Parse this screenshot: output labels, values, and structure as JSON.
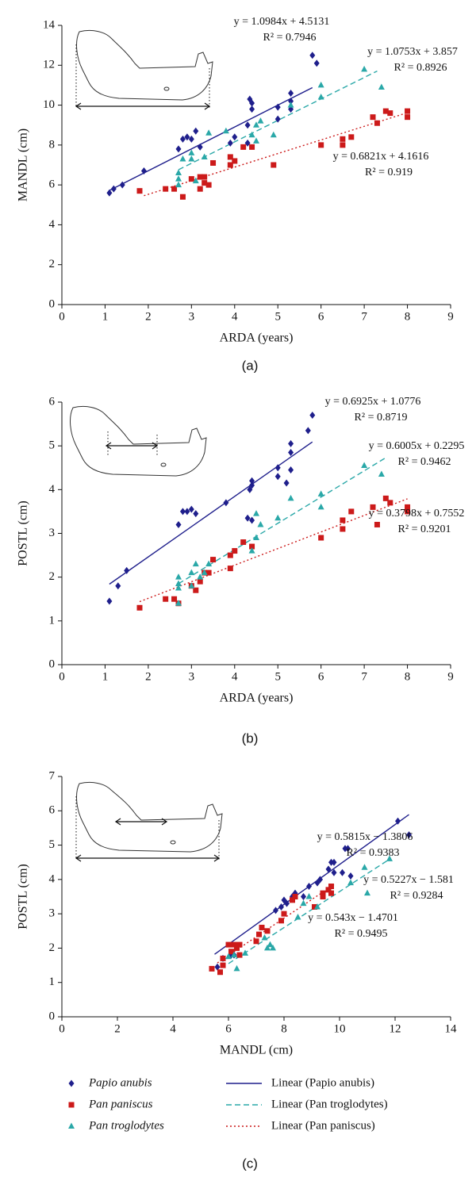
{
  "chart_data": [
    {
      "type": "scatter",
      "label": "(a)",
      "xlabel": "ARDA (years)",
      "ylabel": "MANDL (cm)",
      "xlim": [
        0,
        9
      ],
      "ylim": [
        0,
        14
      ],
      "xticks": [
        0,
        1,
        2,
        3,
        4,
        5,
        6,
        7,
        8,
        9
      ],
      "yticks": [
        0,
        2,
        4,
        6,
        8,
        10,
        12,
        14
      ],
      "series": [
        {
          "color": "#1f1f8c",
          "marker": "diamond",
          "x": [
            1.1,
            1.2,
            1.4,
            1.9,
            2.7,
            2.8,
            2.9,
            3.0,
            3.1,
            3.2,
            3.9,
            4.0,
            4.3,
            4.3,
            4.35,
            4.4,
            4.4,
            5.0,
            5.0,
            5.3,
            5.3,
            5.3,
            5.8,
            5.9
          ],
          "values": [
            5.6,
            5.8,
            6.0,
            6.7,
            7.8,
            8.3,
            8.4,
            8.3,
            8.7,
            7.9,
            8.1,
            8.4,
            8.1,
            9.0,
            10.3,
            10.1,
            9.8,
            9.9,
            9.3,
            9.8,
            10.2,
            10.6,
            12.5,
            12.1
          ]
        },
        {
          "color": "#cc1a1a",
          "marker": "square",
          "x": [
            1.8,
            2.4,
            2.6,
            2.8,
            3.0,
            3.2,
            3.2,
            3.3,
            3.3,
            3.4,
            3.5,
            3.9,
            3.9,
            4.0,
            4.2,
            4.4,
            4.9,
            6.0,
            6.5,
            6.5,
            6.7,
            7.2,
            7.3,
            7.5,
            7.6,
            8.0,
            8.0
          ],
          "values": [
            5.7,
            5.8,
            5.8,
            5.4,
            6.3,
            6.4,
            5.8,
            6.4,
            6.1,
            6.0,
            7.1,
            7.0,
            7.4,
            7.2,
            7.9,
            7.9,
            7.0,
            8.0,
            8.0,
            8.3,
            8.4,
            9.4,
            9.1,
            9.7,
            9.6,
            9.4,
            9.7
          ]
        },
        {
          "color": "#2aa8a8",
          "marker": "triangle",
          "x": [
            2.7,
            2.7,
            2.7,
            2.8,
            3.0,
            3.0,
            3.1,
            3.3,
            3.4,
            3.8,
            4.4,
            4.5,
            4.5,
            4.6,
            4.9,
            5.3,
            6.0,
            6.0,
            7.0,
            7.4
          ],
          "values": [
            6.0,
            6.3,
            6.6,
            7.3,
            7.6,
            7.3,
            6.2,
            7.4,
            8.6,
            8.7,
            8.5,
            8.2,
            9.0,
            9.2,
            8.5,
            10.0,
            10.4,
            11.0,
            11.8,
            10.9
          ]
        }
      ],
      "trendlines": [
        {
          "color": "#1f1f8c",
          "dash": "solid",
          "x": [
            1.1,
            5.8
          ],
          "values": [
            5.72,
            10.88
          ]
        },
        {
          "color": "#2aa8a8",
          "dash": "dashed",
          "x": [
            2.7,
            7.3
          ],
          "values": [
            6.76,
            11.71
          ]
        },
        {
          "color": "#cc1a1a",
          "dash": "dotted",
          "x": [
            1.9,
            8.0
          ],
          "values": [
            5.46,
            9.62
          ]
        }
      ],
      "annotations": [
        {
          "equation": "y = 1.0984x + 4.5131",
          "r2": "R² = 0.7946"
        },
        {
          "equation": "y = 1.0753x + 3.857",
          "r2": "R² = 0.8926"
        },
        {
          "equation": "y = 0.6821x + 4.1616",
          "r2": "R² = 0.919"
        }
      ]
    },
    {
      "type": "scatter",
      "label": "(b)",
      "xlabel": "ARDA (years)",
      "ylabel": "POSTL (cm)",
      "xlim": [
        0,
        9
      ],
      "ylim": [
        0,
        6
      ],
      "xticks": [
        0,
        1,
        2,
        3,
        4,
        5,
        6,
        7,
        8,
        9
      ],
      "yticks": [
        0,
        1,
        2,
        3,
        4,
        5,
        6
      ],
      "series": [
        {
          "color": "#1f1f8c",
          "marker": "diamond",
          "x": [
            1.1,
            1.3,
            1.5,
            2.7,
            2.8,
            2.9,
            3.0,
            3.1,
            3.8,
            4.3,
            4.35,
            4.4,
            4.4,
            4.4,
            5.0,
            5.0,
            5.2,
            5.3,
            5.3,
            5.3,
            5.7,
            5.8
          ],
          "values": [
            1.45,
            1.8,
            2.15,
            3.2,
            3.5,
            3.5,
            3.55,
            3.45,
            3.7,
            3.35,
            4.0,
            4.1,
            4.2,
            3.3,
            4.5,
            4.3,
            4.15,
            5.05,
            4.85,
            4.45,
            5.35,
            5.7
          ]
        },
        {
          "color": "#cc1a1a",
          "marker": "square",
          "x": [
            1.8,
            2.4,
            2.6,
            2.7,
            3.0,
            3.1,
            3.2,
            3.3,
            3.4,
            3.5,
            3.9,
            3.9,
            4.0,
            4.2,
            4.4,
            6.0,
            6.5,
            6.5,
            6.7,
            7.2,
            7.3,
            7.5,
            7.6,
            8.0,
            8.0
          ],
          "values": [
            1.3,
            1.5,
            1.5,
            1.4,
            1.8,
            1.7,
            1.9,
            2.1,
            2.1,
            2.4,
            2.2,
            2.5,
            2.6,
            2.8,
            2.7,
            2.9,
            3.3,
            3.1,
            3.5,
            3.6,
            3.2,
            3.8,
            3.7,
            3.6,
            3.5
          ]
        },
        {
          "color": "#2aa8a8",
          "marker": "triangle",
          "x": [
            2.7,
            2.7,
            2.7,
            2.7,
            3.0,
            3.0,
            3.1,
            3.2,
            3.3,
            3.4,
            4.4,
            4.5,
            4.5,
            4.6,
            5.0,
            5.3,
            6.0,
            6.0,
            7.0,
            7.4
          ],
          "values": [
            1.4,
            1.75,
            1.85,
            2.0,
            1.8,
            2.1,
            2.3,
            2.0,
            2.1,
            2.3,
            2.6,
            2.9,
            3.45,
            3.2,
            3.35,
            3.8,
            3.9,
            3.6,
            4.55,
            4.35
          ]
        }
      ],
      "trendlines": [
        {
          "color": "#1f1f8c",
          "dash": "solid",
          "x": [
            1.1,
            5.8
          ],
          "values": [
            1.84,
            5.09
          ]
        },
        {
          "color": "#2aa8a8",
          "dash": "dashed",
          "x": [
            2.7,
            7.5
          ],
          "values": [
            1.85,
            4.73
          ]
        },
        {
          "color": "#cc1a1a",
          "dash": "dotted",
          "x": [
            1.8,
            8.0
          ],
          "values": [
            1.44,
            3.79
          ]
        }
      ],
      "annotations": [
        {
          "equation": "y = 0.6925x + 1.0776",
          "r2": "R² = 0.8719"
        },
        {
          "equation": "y = 0.6005x + 0.2295",
          "r2": "R² = 0.9462"
        },
        {
          "equation": "y = 0.3798x + 0.7552",
          "r2": "R² = 0.9201"
        }
      ]
    },
    {
      "type": "scatter",
      "label": "(c)",
      "xlabel": "MANDL (cm)",
      "ylabel": "POSTL (cm)",
      "xlim": [
        0,
        14
      ],
      "ylim": [
        0,
        7
      ],
      "xticks": [
        0,
        2,
        4,
        6,
        8,
        10,
        12,
        14
      ],
      "yticks": [
        0,
        1,
        2,
        3,
        4,
        5,
        6,
        7
      ],
      "series": [
        {
          "color": "#1f1f8c",
          "marker": "diamond",
          "x": [
            5.6,
            5.8,
            6.1,
            6.2,
            7.7,
            7.9,
            8.0,
            8.1,
            8.3,
            8.4,
            8.7,
            8.9,
            9.2,
            9.3,
            9.6,
            9.7,
            9.8,
            9.8,
            10.1,
            10.2,
            10.3,
            10.4,
            12.1,
            12.5
          ],
          "values": [
            1.45,
            1.7,
            1.8,
            1.8,
            3.1,
            3.2,
            3.4,
            3.3,
            3.5,
            3.6,
            3.5,
            3.8,
            3.9,
            4.0,
            4.3,
            4.5,
            4.5,
            4.2,
            4.2,
            4.9,
            4.9,
            4.1,
            5.7,
            5.3
          ]
        },
        {
          "color": "#cc1a1a",
          "marker": "square",
          "x": [
            5.4,
            5.7,
            5.8,
            5.8,
            6.0,
            6.1,
            6.2,
            6.3,
            6.4,
            6.4,
            7.0,
            7.1,
            7.2,
            7.4,
            7.9,
            8.0,
            8.3,
            8.4,
            9.1,
            9.4,
            9.4,
            9.6,
            9.7,
            9.7
          ],
          "values": [
            1.4,
            1.3,
            1.5,
            1.7,
            2.1,
            1.9,
            2.1,
            2.0,
            2.1,
            1.8,
            2.2,
            2.4,
            2.6,
            2.5,
            2.8,
            3.0,
            3.4,
            3.5,
            3.2,
            3.6,
            3.5,
            3.7,
            3.8,
            3.6
          ]
        },
        {
          "color": "#2aa8a8",
          "marker": "triangle",
          "x": [
            6.0,
            6.2,
            6.3,
            6.6,
            7.3,
            7.4,
            7.5,
            7.6,
            8.5,
            8.7,
            8.9,
            9.2,
            10.4,
            10.9,
            11.0,
            11.8
          ],
          "values": [
            1.75,
            1.8,
            1.4,
            1.85,
            2.3,
            2.0,
            2.1,
            2.0,
            2.9,
            3.3,
            3.5,
            3.2,
            3.9,
            4.35,
            3.6,
            4.6
          ]
        }
      ],
      "trendlines": [
        {
          "color": "#1f1f8c",
          "dash": "solid",
          "x": [
            5.5,
            12.5
          ],
          "values": [
            1.82,
            5.89
          ]
        },
        {
          "color": "#2aa8a8",
          "dash": "dashed",
          "x": [
            6.0,
            11.8
          ],
          "values": [
            1.55,
            4.59
          ]
        },
        {
          "color": "#cc1a1a",
          "dash": "dotted",
          "x": [
            5.6,
            9.8
          ],
          "values": [
            1.57,
            3.85
          ]
        }
      ],
      "annotations": [
        {
          "equation": "y = 0.5815x − 1.3806",
          "r2": "R² = 0.9383"
        },
        {
          "equation": "y = 0.5227x − 1.581",
          "r2": "R² = 0.9284"
        },
        {
          "equation": "y = 0.543x − 1.4701",
          "r2": "R² = 0.9495"
        }
      ]
    }
  ],
  "legend": {
    "markers": [
      {
        "name": "Papio anubis",
        "color": "#1f1f8c",
        "marker": "diamond"
      },
      {
        "name": "Pan paniscus",
        "color": "#cc1a1a",
        "marker": "square"
      },
      {
        "name": "Pan troglodytes",
        "color": "#2aa8a8",
        "marker": "triangle"
      }
    ],
    "lines": [
      {
        "name": "Linear (Papio anubis)",
        "color": "#1f1f8c",
        "dash": "solid"
      },
      {
        "name": "Linear (Pan troglodytes)",
        "color": "#2aa8a8",
        "dash": "dashed"
      },
      {
        "name": "Linear (Pan paniscus)",
        "color": "#cc1a1a",
        "dash": "dotted"
      }
    ]
  }
}
